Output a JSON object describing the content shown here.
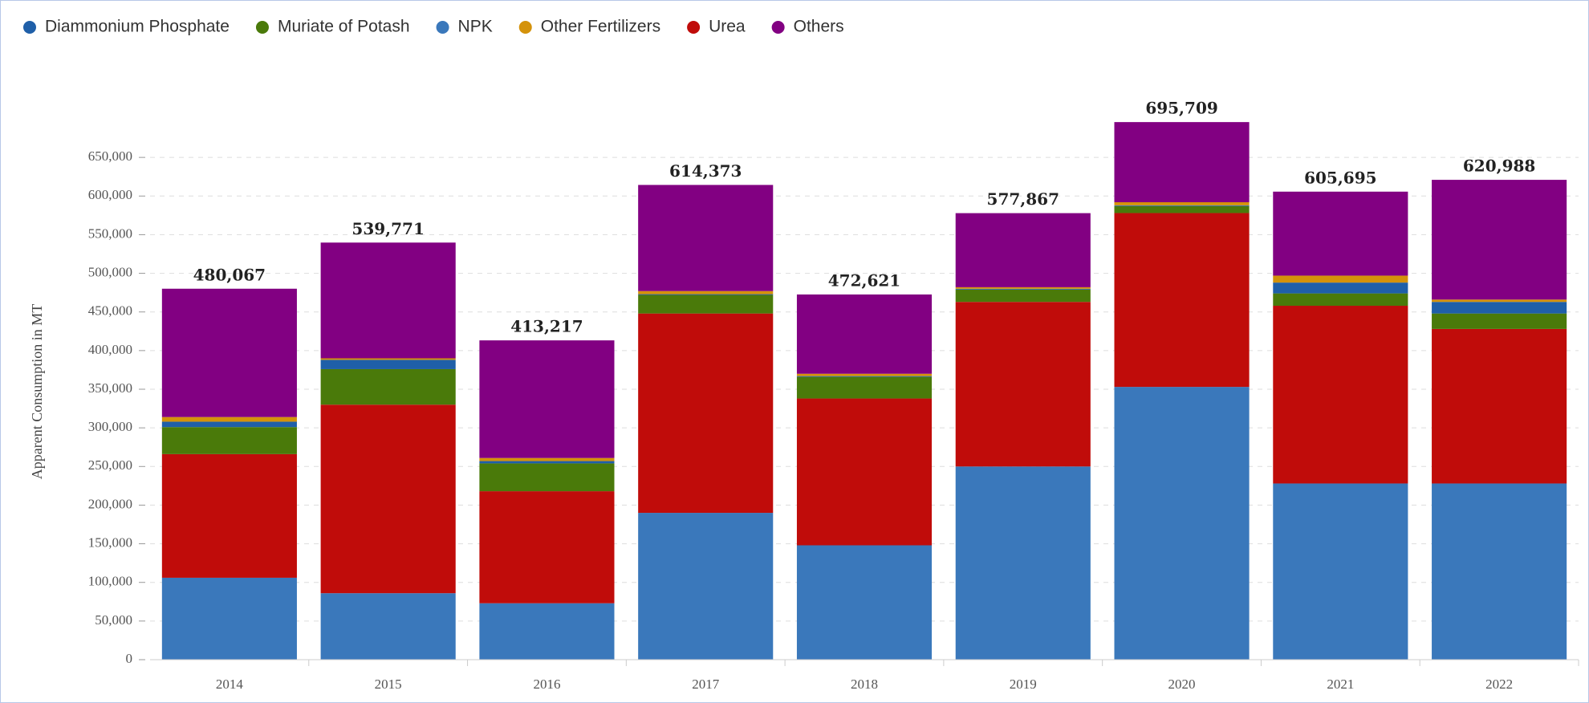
{
  "chart_data": {
    "type": "stacked_bar",
    "y_label": "Apparent Consumption in MT",
    "categories": [
      "2014",
      "2015",
      "2016",
      "2017",
      "2018",
      "2019",
      "2020",
      "2021",
      "2022"
    ],
    "legend_order": [
      3,
      2,
      0,
      4,
      1,
      5
    ],
    "series": [
      {
        "name": "NPK",
        "color": "#3a78bb",
        "values": [
          106000,
          86000,
          73000,
          190000,
          148000,
          250000,
          353000,
          228000,
          228000
        ]
      },
      {
        "name": "Urea",
        "color": "#c00c0a",
        "values": [
          160000,
          244000,
          145000,
          258000,
          190000,
          213000,
          225000,
          230000,
          200000
        ]
      },
      {
        "name": "Muriate of Potash",
        "color": "#4a7a0a",
        "values": [
          35000,
          46000,
          36000,
          24000,
          28000,
          16000,
          9000,
          16000,
          20000
        ]
      },
      {
        "name": "Diammonium Phosphate",
        "color": "#1f5fa8",
        "values": [
          7000,
          12000,
          3000,
          1000,
          1000,
          1000,
          1000,
          14000,
          15000
        ]
      },
      {
        "name": "Other Fertilizers",
        "color": "#d4920a",
        "values": [
          6000,
          2000,
          4000,
          4000,
          3000,
          2000,
          4000,
          9000,
          3000
        ]
      },
      {
        "name": "Others",
        "color": "#820082",
        "values": [
          166067,
          149771,
          152217,
          137373,
          102621,
          95867,
          103709,
          108695,
          154988
        ]
      }
    ],
    "totals": {
      "values": [
        480067,
        539771,
        413217,
        614373,
        472621,
        577867,
        695709,
        605695,
        620988
      ],
      "value_labels": [
        "480,067",
        "539,771",
        "413,217",
        "614,373",
        "472,621",
        "577,867",
        "695,709",
        "605,695",
        "620,988"
      ]
    },
    "ylim": [
      0,
      700000
    ],
    "yticks": [
      0,
      {
        "value": 50000,
        "label": "50,000"
      },
      {
        "value": 100000,
        "label": "100,000"
      },
      {
        "value": 150000,
        "label": "150,000"
      },
      {
        "value": 200000,
        "label": "200,000"
      },
      {
        "value": 250000,
        "label": "250,000"
      },
      {
        "value": 300000,
        "label": "300,000"
      },
      {
        "value": 350000,
        "label": "350,000"
      },
      {
        "value": 400000,
        "label": "400,000"
      },
      {
        "value": 450000,
        "label": "450,000"
      },
      {
        "value": 500000,
        "label": "500,000"
      },
      {
        "value": 550000,
        "label": "550,000"
      },
      {
        "value": 600000,
        "label": "600,000"
      },
      {
        "value": 650000,
        "label": "650,000"
      }
    ],
    "grid": true
  }
}
